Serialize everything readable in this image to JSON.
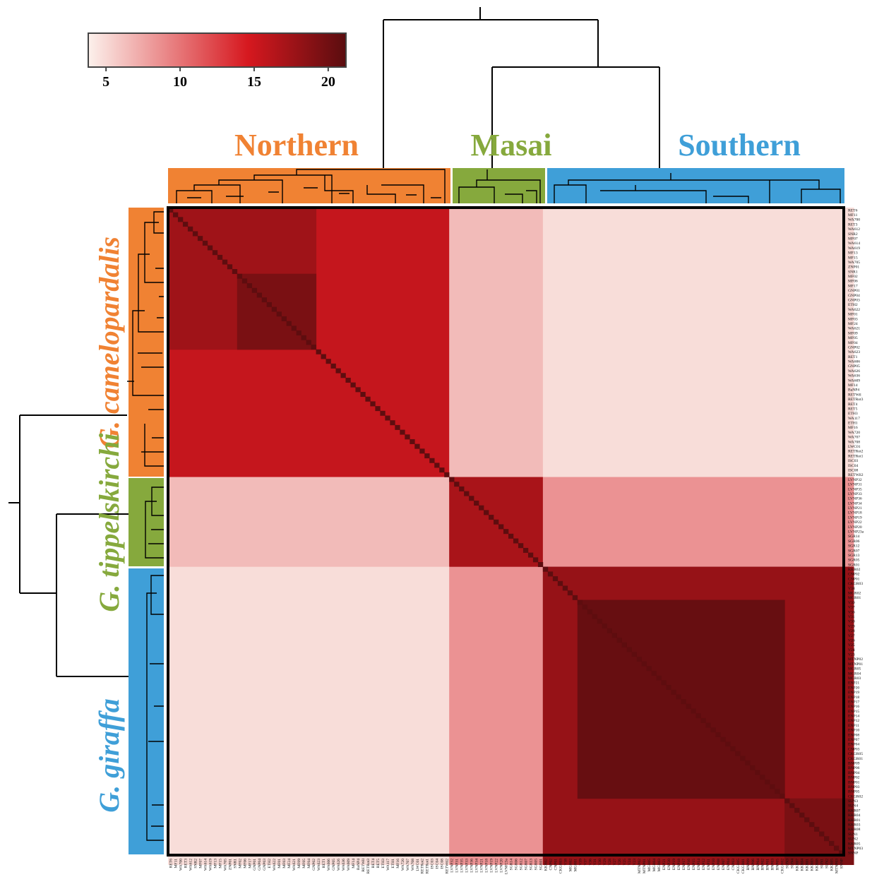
{
  "colors": {
    "low": "#fcf1ec",
    "mid": "#d6181f",
    "high": "#5a0d0f",
    "northern": "#f08233",
    "masai": "#86a93d",
    "southern": "#3f9fd8"
  },
  "colorbar": {
    "ticks": [
      "5",
      "10",
      "15",
      "20"
    ],
    "tick_values": [
      5,
      10,
      15,
      20
    ],
    "min": 3.8,
    "max": 21.2
  },
  "clades": {
    "northern": "Northern",
    "masai": "Masai",
    "southern": "Southern"
  },
  "species": {
    "camelopardalis": "G. camelopardalis",
    "tippelskirchi": "G. tippelskirchi",
    "giraffa": "G. giraffa"
  },
  "chart_data": {
    "type": "heatmap",
    "title": "",
    "xlabel": "",
    "ylabel": "",
    "value_range": [
      3.8,
      21.2
    ],
    "row_labels": [
      "RET6",
      "MF11",
      "WA700",
      "RET3",
      "WA612",
      "SNR2",
      "MF07",
      "WA614",
      "WA619",
      "MF13",
      "MF15",
      "WA705",
      "ZNP01",
      "SNR1",
      "MF02",
      "MF06",
      "MF17",
      "GNP01",
      "GNP04",
      "GNP03",
      "ETH2",
      "WA622",
      "MF01",
      "MF03",
      "MF24",
      "WA621",
      "MF09",
      "MF05",
      "MF04",
      "GNP02",
      "WA623",
      "RET1",
      "WA606",
      "GNP05",
      "WA626",
      "WA636",
      "WA609",
      "MF14",
      "BaNP4",
      "RETWil",
      "RETRot3",
      "RET4",
      "RET5",
      "ETH3",
      "WA117",
      "ETH1",
      "MF16",
      "WA720",
      "WA707",
      "WA708",
      "LWC01",
      "RETRot2",
      "RETRot1",
      "ISC03",
      "ISC04",
      "ISC08",
      "RETWil2",
      "LVNP32",
      "LVNP31",
      "LVNP35",
      "LVNP33",
      "LVNP36",
      "LVNP34",
      "LVNP21",
      "LVNP18",
      "LVNP19",
      "LVNP22",
      "LVNP20",
      "LVNP23a",
      "SGR14",
      "SGR06",
      "SGR12",
      "SGR07",
      "SGR13",
      "SGR05",
      "SGR01",
      "KKR02",
      "CNP02",
      "CNP01",
      "CKGR03",
      "V38",
      "MGR02",
      "MGR01",
      "V39",
      "V37",
      "V36",
      "V31",
      "V30",
      "V29",
      "V28",
      "V27",
      "V26",
      "V25",
      "V24",
      "V23",
      "MTNP02",
      "MTNP01",
      "MGR05",
      "MGR04",
      "MGR03",
      "ENP21",
      "ENP20",
      "ENP19",
      "ENP18",
      "ENP17",
      "ENP16",
      "ENP15",
      "ENP14",
      "ENP12",
      "ENP11",
      "ENP10",
      "ENP08",
      "ENP07",
      "ENP04",
      "CNP03",
      "CKGR05",
      "CKGR01",
      "BNP09",
      "BNP06",
      "BNP04",
      "BNP02",
      "BNP01",
      "BNP03",
      "BNP05",
      "CKGR02",
      "SUN3",
      "SUN4",
      "KKR07",
      "KKR04",
      "KKR01",
      "KKR03",
      "KKR08",
      "SUN1",
      "SUN2",
      "KKR05",
      "MTNP03",
      "SNNP"
    ],
    "col_labels": [
      "RET6",
      "MF11",
      "WA700",
      "RET3",
      "WA612",
      "SNR2",
      "MF07",
      "WA614",
      "WA619",
      "MF13",
      "MF15",
      "WA705",
      "ZNP01",
      "SNR1",
      "MF02",
      "MF06",
      "MF17",
      "GNP01",
      "GNP04",
      "GNP03",
      "ETH2",
      "WA622",
      "MF01",
      "MF03",
      "MF24",
      "WA621",
      "MF09",
      "MF05",
      "MF04",
      "GNP02",
      "WA623",
      "RET1",
      "WA606",
      "GNP05",
      "WA626",
      "WA636",
      "WA609",
      "MF14",
      "BaNP4",
      "RETWil",
      "RETRot3",
      "RET4",
      "RET5",
      "ETH3",
      "WA117",
      "ETH1",
      "MF16",
      "WA720",
      "WA707",
      "WA708",
      "LWC01",
      "RETRot2",
      "RETRot1",
      "ISC03",
      "ISC04",
      "ISC08",
      "RETWil2",
      "LVNP32",
      "LVNP31",
      "LVNP35",
      "LVNP33",
      "LVNP36",
      "LVNP34",
      "LVNP21",
      "LVNP18",
      "LVNP19",
      "LVNP22",
      "LVNP20",
      "LVNP23a",
      "SGR14",
      "SGR06",
      "SGR12",
      "SGR07",
      "SGR13",
      "SGR05",
      "SGR01",
      "KKR02",
      "CNP02",
      "CNP01",
      "CKGR03",
      "V38",
      "MGR02",
      "MGR01",
      "V39",
      "V37",
      "V36",
      "V31",
      "V30",
      "V29",
      "V28",
      "V27",
      "V26",
      "V25",
      "V24",
      "V23",
      "MTNP02",
      "MTNP01",
      "MGR05",
      "MGR04",
      "MGR03",
      "ENP21",
      "ENP20",
      "ENP19",
      "ENP18",
      "ENP17",
      "ENP16",
      "ENP15",
      "ENP14",
      "ENP12",
      "ENP11",
      "ENP10",
      "ENP08",
      "ENP07",
      "ENP04",
      "CNP03",
      "CKGR05",
      "CKGR01",
      "BNP09",
      "BNP06",
      "BNP04",
      "BNP02",
      "BNP01",
      "BNP03",
      "BNP05",
      "CKGR02",
      "SUN3",
      "SUN4",
      "KKR07",
      "KKR04",
      "KKR01",
      "KKR03",
      "KKR08",
      "SUN1",
      "SUN2",
      "KKR05",
      "MTNP03",
      "SNNP"
    ],
    "groups": [
      {
        "label": "Northern",
        "species": "G. camelopardalis",
        "start_row": 0,
        "end_row": 56
      },
      {
        "label": "Masai",
        "species": "G. tippelskirchi",
        "start_row": 57,
        "end_row": 75
      },
      {
        "label": "Southern",
        "species": "G. giraffa",
        "start_row": 76,
        "end_row": 138
      }
    ],
    "group_values": {
      "Northern-Northern": 15.5,
      "Masai-Masai": 17.0,
      "Southern-Southern": 20.0,
      "Northern-Masai": 6.5,
      "Northern-Southern": 4.8,
      "Masai-Southern": 8.5
    },
    "sub_blocks": [
      {
        "rows": [
          0,
          29
        ],
        "cols": [
          0,
          29
        ],
        "value": 17.5
      },
      {
        "rows": [
          14,
          29
        ],
        "cols": [
          14,
          29
        ],
        "value": 19.5
      },
      {
        "rows": [
          76,
          138
        ],
        "cols": [
          76,
          138
        ],
        "value": 18.0
      },
      {
        "rows": [
          83,
          124
        ],
        "cols": [
          83,
          124
        ],
        "value": 20.5
      },
      {
        "rows": [
          125,
          138
        ],
        "cols": [
          125,
          138
        ],
        "value": 19.5
      }
    ],
    "diagonal_value": 21.0
  }
}
